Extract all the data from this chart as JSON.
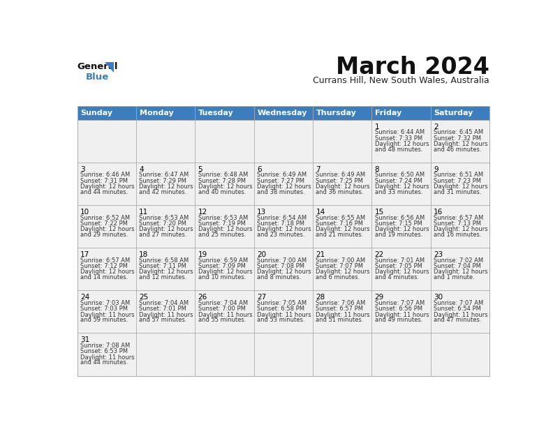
{
  "title": "March 2024",
  "subtitle": "Currans Hill, New South Wales, Australia",
  "days_of_week": [
    "Sunday",
    "Monday",
    "Tuesday",
    "Wednesday",
    "Thursday",
    "Friday",
    "Saturday"
  ],
  "header_color": "#3a7ebf",
  "header_text_color": "#ffffff",
  "cell_bg_color": "#f0f0f0",
  "border_color": "#aaaaaa",
  "day_number_color": "#000000",
  "text_color": "#333333",
  "calendar_data": [
    [
      null,
      null,
      null,
      null,
      null,
      {
        "day": "1",
        "sunrise": "6:44 AM",
        "sunset": "7:33 PM",
        "daylight": "12 hours and 48 minutes."
      },
      {
        "day": "2",
        "sunrise": "6:45 AM",
        "sunset": "7:32 PM",
        "daylight": "12 hours and 46 minutes."
      }
    ],
    [
      {
        "day": "3",
        "sunrise": "6:46 AM",
        "sunset": "7:31 PM",
        "daylight": "12 hours and 44 minutes."
      },
      {
        "day": "4",
        "sunrise": "6:47 AM",
        "sunset": "7:29 PM",
        "daylight": "12 hours and 42 minutes."
      },
      {
        "day": "5",
        "sunrise": "6:48 AM",
        "sunset": "7:28 PM",
        "daylight": "12 hours and 40 minutes."
      },
      {
        "day": "6",
        "sunrise": "6:49 AM",
        "sunset": "7:27 PM",
        "daylight": "12 hours and 38 minutes."
      },
      {
        "day": "7",
        "sunrise": "6:49 AM",
        "sunset": "7:25 PM",
        "daylight": "12 hours and 36 minutes."
      },
      {
        "day": "8",
        "sunrise": "6:50 AM",
        "sunset": "7:24 PM",
        "daylight": "12 hours and 33 minutes."
      },
      {
        "day": "9",
        "sunrise": "6:51 AM",
        "sunset": "7:23 PM",
        "daylight": "12 hours and 31 minutes."
      }
    ],
    [
      {
        "day": "10",
        "sunrise": "6:52 AM",
        "sunset": "7:22 PM",
        "daylight": "12 hours and 29 minutes."
      },
      {
        "day": "11",
        "sunrise": "6:53 AM",
        "sunset": "7:20 PM",
        "daylight": "12 hours and 27 minutes."
      },
      {
        "day": "12",
        "sunrise": "6:53 AM",
        "sunset": "7:19 PM",
        "daylight": "12 hours and 25 minutes."
      },
      {
        "day": "13",
        "sunrise": "6:54 AM",
        "sunset": "7:18 PM",
        "daylight": "12 hours and 23 minutes."
      },
      {
        "day": "14",
        "sunrise": "6:55 AM",
        "sunset": "7:16 PM",
        "daylight": "12 hours and 21 minutes."
      },
      {
        "day": "15",
        "sunrise": "6:56 AM",
        "sunset": "7:15 PM",
        "daylight": "12 hours and 19 minutes."
      },
      {
        "day": "16",
        "sunrise": "6:57 AM",
        "sunset": "7:13 PM",
        "daylight": "12 hours and 16 minutes."
      }
    ],
    [
      {
        "day": "17",
        "sunrise": "6:57 AM",
        "sunset": "7:12 PM",
        "daylight": "12 hours and 14 minutes."
      },
      {
        "day": "18",
        "sunrise": "6:58 AM",
        "sunset": "7:11 PM",
        "daylight": "12 hours and 12 minutes."
      },
      {
        "day": "19",
        "sunrise": "6:59 AM",
        "sunset": "7:09 PM",
        "daylight": "12 hours and 10 minutes."
      },
      {
        "day": "20",
        "sunrise": "7:00 AM",
        "sunset": "7:08 PM",
        "daylight": "12 hours and 8 minutes."
      },
      {
        "day": "21",
        "sunrise": "7:00 AM",
        "sunset": "7:07 PM",
        "daylight": "12 hours and 6 minutes."
      },
      {
        "day": "22",
        "sunrise": "7:01 AM",
        "sunset": "7:05 PM",
        "daylight": "12 hours and 4 minutes."
      },
      {
        "day": "23",
        "sunrise": "7:02 AM",
        "sunset": "7:04 PM",
        "daylight": "12 hours and 1 minute."
      }
    ],
    [
      {
        "day": "24",
        "sunrise": "7:03 AM",
        "sunset": "7:03 PM",
        "daylight": "11 hours and 59 minutes."
      },
      {
        "day": "25",
        "sunrise": "7:04 AM",
        "sunset": "7:01 PM",
        "daylight": "11 hours and 57 minutes."
      },
      {
        "day": "26",
        "sunrise": "7:04 AM",
        "sunset": "7:00 PM",
        "daylight": "11 hours and 55 minutes."
      },
      {
        "day": "27",
        "sunrise": "7:05 AM",
        "sunset": "6:58 PM",
        "daylight": "11 hours and 53 minutes."
      },
      {
        "day": "28",
        "sunrise": "7:06 AM",
        "sunset": "6:57 PM",
        "daylight": "11 hours and 51 minutes."
      },
      {
        "day": "29",
        "sunrise": "7:07 AM",
        "sunset": "6:56 PM",
        "daylight": "11 hours and 49 minutes."
      },
      {
        "day": "30",
        "sunrise": "7:07 AM",
        "sunset": "6:54 PM",
        "daylight": "11 hours and 47 minutes."
      }
    ],
    [
      {
        "day": "31",
        "sunrise": "7:08 AM",
        "sunset": "6:53 PM",
        "daylight": "11 hours and 44 minutes."
      },
      null,
      null,
      null,
      null,
      null,
      null
    ]
  ]
}
